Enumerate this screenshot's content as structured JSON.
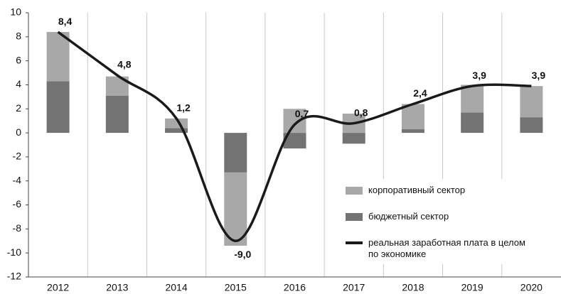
{
  "chart_data": {
    "type": "bar",
    "categories": [
      "2012",
      "2013",
      "2014",
      "2015",
      "2016",
      "2017",
      "2018",
      "2019",
      "2020"
    ],
    "series": [
      {
        "name": "бюджетный сектор",
        "color": "#737373",
        "values": [
          4.3,
          3.1,
          0.4,
          -3.3,
          -1.3,
          -0.9,
          0.3,
          1.7,
          1.3
        ]
      },
      {
        "name": "корпоративный сектор",
        "color": "#a8a8a8",
        "values": [
          4.1,
          1.6,
          0.8,
          -6.1,
          2.0,
          1.6,
          2.1,
          2.3,
          2.6
        ]
      },
      {
        "name": "реальная заработная плата в целом по экономике",
        "type": "line",
        "color": "#1a1a1a",
        "values": [
          8.4,
          4.8,
          1.2,
          -9.0,
          0.7,
          0.8,
          2.4,
          3.9,
          3.9
        ],
        "value_labels": [
          "8,4",
          "4,8",
          "1,2",
          "-9,0",
          "0,7",
          "0,8",
          "2,4",
          "3,9",
          "3,9"
        ]
      }
    ],
    "legend_order": [
      1,
      0,
      2
    ],
    "ylim": [
      -12,
      10
    ],
    "yticks": [
      -12,
      -10,
      -8,
      -6,
      -4,
      -2,
      0,
      2,
      4,
      6,
      8,
      10
    ],
    "stacked": true
  }
}
